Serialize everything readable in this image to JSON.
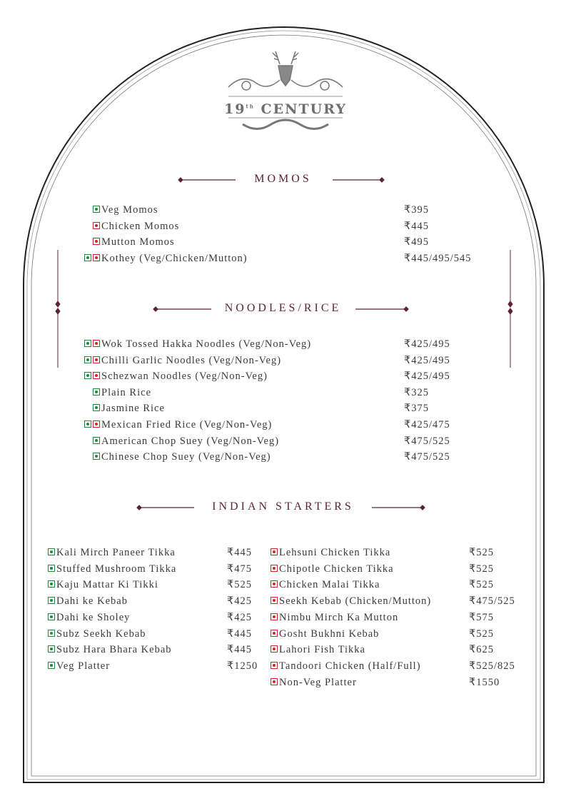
{
  "brand": {
    "name": "19th CENTURY",
    "number": "19",
    "sup": "th",
    "word": "CENTURY"
  },
  "colors": {
    "heading": "#5b2430",
    "veg": "#1f8a3c",
    "nonveg": "#cc2a2a",
    "text": "#3a3a3a"
  },
  "sections": {
    "momos": {
      "title": "MOMOS",
      "items": [
        {
          "name": "Veg Momos",
          "price": "₹395",
          "marks": [
            "veg"
          ]
        },
        {
          "name": "Chicken Momos",
          "price": "₹445",
          "marks": [
            "nonveg"
          ]
        },
        {
          "name": "Mutton Momos",
          "price": "₹495",
          "marks": [
            "nonveg"
          ]
        },
        {
          "name": "Kothey (Veg/Chicken/Mutton)",
          "price": "₹445/495/545",
          "marks": [
            "veg",
            "nonveg"
          ]
        }
      ]
    },
    "noodles": {
      "title": "NOODLES/RICE",
      "items": [
        {
          "name": "Wok Tossed Hakka Noodles (Veg/Non-Veg)",
          "price": "₹425/495",
          "marks": [
            "veg",
            "nonveg"
          ]
        },
        {
          "name": "Chilli Garlic Noodles (Veg/Non-Veg)",
          "price": "₹425/495",
          "marks": [
            "veg",
            "nonveg"
          ]
        },
        {
          "name": "Schezwan Noodles (Veg/Non-Veg)",
          "price": "₹425/495",
          "marks": [
            "veg",
            "nonveg"
          ]
        },
        {
          "name": "Plain Rice",
          "price": "₹325",
          "marks": [
            "veg"
          ]
        },
        {
          "name": "Jasmine Rice",
          "price": "₹375",
          "marks": [
            "veg"
          ]
        },
        {
          "name": "Mexican Fried Rice (Veg/Non-Veg)",
          "price": "₹425/475",
          "marks": [
            "veg",
            "nonveg"
          ]
        },
        {
          "name": "American Chop Suey (Veg/Non-Veg)",
          "price": "₹475/525",
          "marks": [
            "veg"
          ]
        },
        {
          "name": "Chinese Chop Suey (Veg/Non-Veg)",
          "price": "₹475/525",
          "marks": [
            "veg"
          ]
        }
      ]
    },
    "starters": {
      "title": "INDIAN STARTERS",
      "veg": [
        {
          "name": "Kali Mirch Paneer Tikka",
          "price": "₹445"
        },
        {
          "name": "Stuffed Mushroom Tikka",
          "price": "₹475"
        },
        {
          "name": "Kaju Mattar Ki Tikki",
          "price": "₹525"
        },
        {
          "name": "Dahi ke Kebab",
          "price": "₹425"
        },
        {
          "name": "Dahi ke Sholey",
          "price": "₹425"
        },
        {
          "name": "Subz Seekh Kebab",
          "price": "₹445"
        },
        {
          "name": "Subz Hara Bhara Kebab",
          "price": "₹445"
        },
        {
          "name": "Veg Platter",
          "price": "₹1250"
        }
      ],
      "nonveg": [
        {
          "name": "Lehsuni Chicken Tikka",
          "price": "₹525"
        },
        {
          "name": "Chipotle Chicken Tikka",
          "price": "₹525"
        },
        {
          "name": "Chicken Malai Tikka",
          "price": "₹525"
        },
        {
          "name": "Seekh Kebab (Chicken/Mutton)",
          "price": "₹475/525"
        },
        {
          "name": "Nimbu Mirch Ka Mutton",
          "price": "₹575"
        },
        {
          "name": "Gosht Bukhni Kebab",
          "price": "₹525"
        },
        {
          "name": "Lahori Fish Tikka",
          "price": "₹625"
        },
        {
          "name": "Tandoori Chicken (Half/Full)",
          "price": "₹525/825"
        },
        {
          "name": "Non-Veg Platter",
          "price": "₹1550"
        }
      ]
    }
  }
}
